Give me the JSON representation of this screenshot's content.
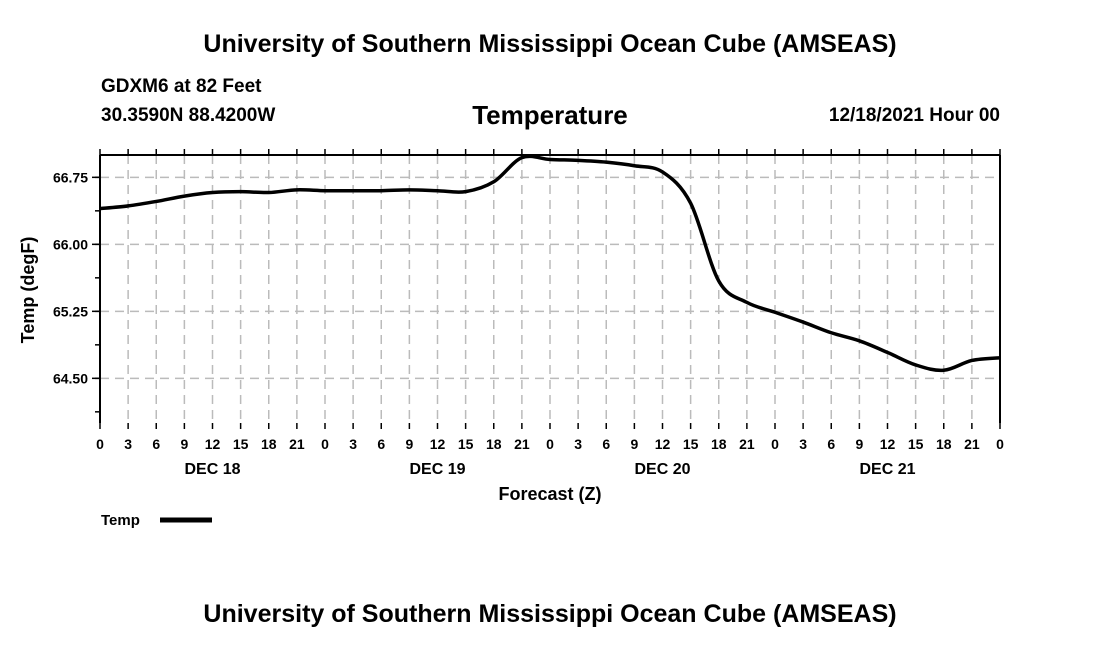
{
  "header": {
    "title": "University of Southern Mississippi Ocean Cube (AMSEAS)",
    "station": "GDXM6 at 82 Feet",
    "coordinates": "30.3590N  88.4200W",
    "variable": "Temperature",
    "datetime": "12/18/2021 Hour 00"
  },
  "footer": {
    "title": "University of Southern Mississippi Ocean Cube (AMSEAS)"
  },
  "chart_data": {
    "type": "line",
    "title": "Temperature",
    "xlabel": "Forecast (Z)",
    "ylabel": "Temp (degF)",
    "x_unit": "forecast hour",
    "xlim": [
      0,
      96
    ],
    "ylim": [
      64.0,
      67.0
    ],
    "yticks": [
      "66.75",
      "66.00",
      "65.25",
      "64.50"
    ],
    "ytick_values": [
      66.75,
      66.0,
      65.25,
      64.5
    ],
    "xtick_labels": [
      "0",
      "3",
      "6",
      "9",
      "12",
      "15",
      "18",
      "21",
      "0",
      "3",
      "6",
      "9",
      "12",
      "15",
      "18",
      "21",
      "0",
      "3",
      "6",
      "9",
      "12",
      "15",
      "18",
      "21",
      "0",
      "3",
      "6",
      "9",
      "12",
      "15",
      "18",
      "21",
      "0"
    ],
    "day_labels": [
      {
        "hour": 12,
        "label": "DEC 18"
      },
      {
        "hour": 36,
        "label": "DEC 19"
      },
      {
        "hour": 60,
        "label": "DEC 20"
      },
      {
        "hour": 84,
        "label": "DEC 21"
      }
    ],
    "grid": true,
    "legend": {
      "placement": "bottom-left",
      "entries": [
        {
          "label": "Temp",
          "color": "#000000"
        }
      ]
    },
    "series": [
      {
        "name": "Temp",
        "color": "#000000",
        "x": [
          0,
          3,
          6,
          9,
          12,
          15,
          18,
          21,
          24,
          27,
          30,
          33,
          36,
          39,
          42,
          45,
          48,
          51,
          54,
          57,
          60,
          63,
          66,
          69,
          72,
          75,
          78,
          81,
          84,
          87,
          90,
          93,
          96
        ],
        "values": [
          66.4,
          66.43,
          66.48,
          66.54,
          66.58,
          66.59,
          66.58,
          66.61,
          66.6,
          66.6,
          66.6,
          66.61,
          66.6,
          66.59,
          66.7,
          66.97,
          66.95,
          66.94,
          66.92,
          66.88,
          66.81,
          66.46,
          65.59,
          65.35,
          65.24,
          65.13,
          65.01,
          64.92,
          64.79,
          64.65,
          64.59,
          64.7,
          64.73
        ]
      }
    ]
  }
}
